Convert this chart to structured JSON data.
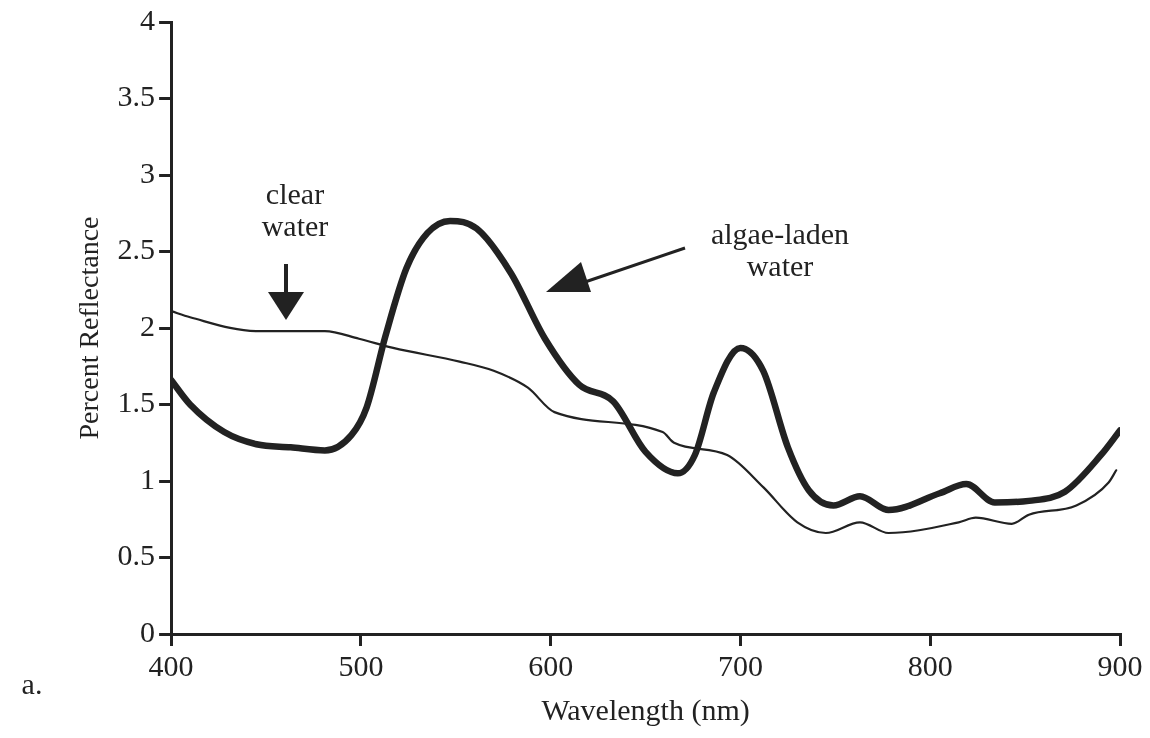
{
  "chart_data": {
    "type": "line",
    "xlabel": "Wavelength (nm)",
    "ylabel": "Percent Reflectance",
    "xlim": [
      400,
      900
    ],
    "xticks": [
      400,
      500,
      600,
      700,
      800,
      900
    ],
    "ylim": [
      0,
      4
    ],
    "yticks": [
      0,
      0.5,
      1,
      1.5,
      2,
      2.5,
      3,
      3.5,
      4
    ],
    "grid": false,
    "legend": false,
    "marker": "none",
    "line_style": "solid",
    "series": [
      {
        "color": "#222222",
        "x": [
          400,
          410,
          445,
          481,
          499,
          517,
          552,
          570,
          588,
          602,
          659,
          665,
          693,
          712,
          730,
          745,
          763,
          778,
          815,
          824,
          843,
          852,
          877,
          894,
          898
        ],
        "values": [
          2.11,
          2.07,
          1.98,
          1.98,
          1.93,
          1.87,
          1.78,
          1.72,
          1.61,
          1.45,
          1.32,
          1.25,
          1.17,
          0.96,
          0.73,
          0.66,
          0.73,
          0.66,
          0.73,
          0.76,
          0.72,
          0.78,
          0.84,
          0.99,
          1.07
        ]
      },
      {
        "color": "#222222",
        "x": [
          400,
          410,
          428,
          445,
          463,
          481,
          495,
          503,
          513,
          524,
          535,
          547,
          561,
          579,
          597,
          615,
          633,
          650,
          667,
          676,
          686,
          700,
          712,
          725,
          736,
          749,
          763,
          778,
          805,
          819,
          834,
          852,
          871,
          890,
          900
        ],
        "values": [
          1.66,
          1.5,
          1.32,
          1.24,
          1.22,
          1.2,
          1.3,
          1.48,
          1.95,
          2.39,
          2.62,
          2.7,
          2.65,
          2.36,
          1.93,
          1.63,
          1.52,
          1.19,
          1.05,
          1.17,
          1.58,
          1.87,
          1.72,
          1.22,
          0.94,
          0.84,
          0.9,
          0.81,
          0.92,
          0.98,
          0.86,
          0.87,
          0.93,
          1.17,
          1.33
        ]
      }
    ],
    "annotations": [
      "clear water",
      "algae-laden water",
      "a."
    ]
  }
}
